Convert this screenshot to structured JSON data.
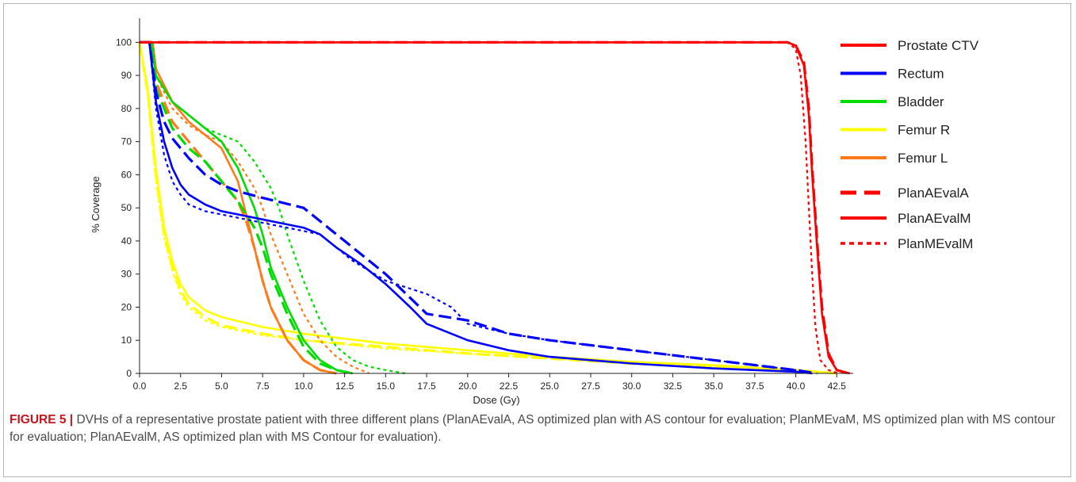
{
  "figure": {
    "caption_label": "FIGURE 5 |",
    "caption_text": " DVHs of a representative prostate patient with three different plans (PlanAEvalA, AS optimized plan with AS contour for evaluation; PlanMEvaM, MS optimized plan with MS contour for evaluation; PlanAEvalM, AS optimized plan with MS Contour for evaluation)."
  },
  "chart_data": {
    "type": "line",
    "xlabel": "Dose (Gy)",
    "ylabel": "% Coverage",
    "xlim": [
      0,
      43.5
    ],
    "ylim": [
      0,
      102
    ],
    "x_ticks": [
      "0.0",
      "2.5",
      "5.0",
      "7.5",
      "10.0",
      "12.5",
      "15.0",
      "17.5",
      "20.0",
      "22.5",
      "25.0",
      "27.5",
      "30.0",
      "32.5",
      "35.0",
      "37.5",
      "40.0",
      "42.5"
    ],
    "y_ticks": [
      "0",
      "10",
      "20",
      "30",
      "40",
      "50",
      "60",
      "70",
      "80",
      "90",
      "100"
    ],
    "grid": false,
    "legend_position": "right",
    "structure_legend": [
      {
        "name": "Prostate CTV",
        "color": "#ff0000"
      },
      {
        "name": "Rectum",
        "color": "#0000ff"
      },
      {
        "name": "Bladder",
        "color": "#00dd00"
      },
      {
        "name": "Femur R",
        "color": "#ffff00"
      },
      {
        "name": "Femur L",
        "color": "#ff7a1a"
      }
    ],
    "plan_legend": [
      {
        "name": "PlanAEvalA",
        "style": "dashed"
      },
      {
        "name": "PlanAEvalM",
        "style": "solid"
      },
      {
        "name": "PlanMEvalM",
        "style": "dotted"
      }
    ],
    "series": [
      {
        "structure": "Femur R",
        "plan": "PlanAEvalA",
        "color": "#ffff00",
        "x": [
          0,
          0.5,
          1,
          1.5,
          2,
          2.5,
          3,
          4,
          5,
          7.5,
          10,
          15,
          20,
          25,
          30,
          35,
          40,
          42.5
        ],
        "y": [
          100,
          85,
          60,
          42,
          32,
          25,
          21,
          17,
          14.5,
          12,
          10,
          8,
          6,
          4.5,
          3,
          2,
          1,
          0
        ]
      },
      {
        "structure": "Femur R",
        "plan": "PlanAEvalM",
        "color": "#ffff00",
        "x": [
          0,
          0.5,
          1,
          1.5,
          2,
          2.5,
          3,
          4,
          5,
          7.5,
          10,
          15,
          20,
          25,
          30,
          35,
          40,
          42.5
        ],
        "y": [
          100,
          86,
          62,
          44,
          34,
          27,
          23,
          19,
          17,
          14,
          12,
          9,
          7,
          5,
          3.5,
          2.5,
          1,
          0
        ]
      },
      {
        "structure": "Femur R",
        "plan": "PlanMEvalM",
        "color": "#ffff00",
        "x": [
          0,
          0.5,
          1,
          1.5,
          2,
          2.5,
          3,
          4,
          5,
          7.5,
          10,
          15,
          20,
          25,
          30,
          35,
          40,
          42.5
        ],
        "y": [
          100,
          84,
          58,
          41,
          31,
          24,
          20,
          16,
          14,
          11.5,
          10,
          7.5,
          6,
          4.5,
          3,
          2,
          1,
          0
        ]
      },
      {
        "structure": "Femur L",
        "plan": "PlanAEvalA",
        "color": "#ff7a1a",
        "x": [
          0,
          0.7,
          1,
          2,
          3,
          4,
          5,
          6,
          6.5,
          7,
          7.5,
          8,
          9,
          10,
          11,
          12
        ],
        "y": [
          100,
          100,
          88,
          76,
          70,
          64,
          58,
          52,
          46,
          38,
          28,
          20,
          10,
          4,
          1,
          0
        ]
      },
      {
        "structure": "Femur L",
        "plan": "PlanAEvalM",
        "color": "#ff7a1a",
        "x": [
          0,
          0.8,
          1,
          2,
          3,
          4,
          5,
          6,
          6.5,
          7,
          7.5,
          8,
          9,
          10,
          11,
          12
        ],
        "y": [
          100,
          100,
          92,
          82,
          76,
          72,
          68,
          58,
          48,
          38,
          28,
          20,
          10,
          4,
          1,
          0
        ]
      },
      {
        "structure": "Femur L",
        "plan": "PlanMEvalM",
        "color": "#ff7a1a",
        "x": [
          0,
          0.8,
          1,
          2,
          3,
          4,
          5,
          6,
          7,
          7.5,
          8,
          9,
          10,
          11,
          12,
          13,
          14
        ],
        "y": [
          100,
          100,
          90,
          80,
          75,
          72,
          70,
          64,
          56,
          50,
          42,
          30,
          18,
          10,
          5,
          2,
          0
        ]
      },
      {
        "structure": "Bladder",
        "plan": "PlanAEvalA",
        "color": "#00dd00",
        "x": [
          0,
          0.7,
          1,
          2,
          3,
          4,
          5,
          6,
          7,
          7.5,
          8,
          9,
          10,
          11,
          12,
          13
        ],
        "y": [
          100,
          100,
          86,
          74,
          68,
          64,
          58,
          52,
          44,
          38,
          30,
          18,
          8,
          3,
          1,
          0
        ]
      },
      {
        "structure": "Bladder",
        "plan": "PlanAEvalM",
        "color": "#00dd00",
        "x": [
          0,
          0.7,
          1,
          2,
          3,
          4,
          5,
          6,
          7,
          7.5,
          8,
          9,
          10,
          11,
          12,
          13
        ],
        "y": [
          100,
          100,
          90,
          82,
          78,
          74,
          70,
          62,
          50,
          42,
          32,
          20,
          10,
          4,
          1,
          0
        ]
      },
      {
        "structure": "Bladder",
        "plan": "PlanMEvalM",
        "color": "#00dd00",
        "x": [
          0,
          0.8,
          1,
          2,
          3,
          4,
          5,
          6,
          7,
          8,
          8.5,
          9,
          10,
          11,
          12,
          13,
          14,
          15,
          16.2
        ],
        "y": [
          100,
          100,
          90,
          82,
          78,
          74,
          72,
          70,
          64,
          56,
          50,
          42,
          28,
          16,
          8,
          4,
          2,
          1,
          0
        ]
      },
      {
        "structure": "Rectum",
        "plan": "PlanAEvalA",
        "color": "#0000ff",
        "x": [
          0,
          0.6,
          1,
          1.5,
          2,
          3,
          4,
          5,
          6,
          7.5,
          10,
          11.5,
          12.5,
          15,
          17.5,
          20,
          22.5,
          25,
          30,
          35,
          40,
          41.3
        ],
        "y": [
          100,
          100,
          85,
          76,
          71,
          65,
          60,
          57,
          55,
          53,
          50,
          44,
          40,
          30,
          18,
          16,
          12,
          10,
          7,
          4,
          1,
          0
        ]
      },
      {
        "structure": "Rectum",
        "plan": "PlanAEvalM",
        "color": "#0000ff",
        "x": [
          0,
          0.6,
          1,
          1.5,
          2,
          2.5,
          3,
          4,
          5,
          6,
          7,
          8,
          10,
          11,
          12,
          13.5,
          15,
          16.5,
          17.5,
          20,
          22.5,
          25,
          30,
          35,
          40,
          41
        ],
        "y": [
          100,
          100,
          82,
          70,
          62,
          57,
          54,
          51,
          49,
          48,
          47,
          46,
          44,
          42,
          38,
          33,
          27,
          20,
          15,
          10,
          7,
          5,
          3,
          1.5,
          0.5,
          0
        ]
      },
      {
        "structure": "Rectum",
        "plan": "PlanMEvalM",
        "color": "#0000ff",
        "x": [
          0,
          0.6,
          1,
          1.5,
          2,
          2.5,
          3,
          4,
          5,
          6,
          8,
          10,
          11,
          12,
          13,
          15,
          17.5,
          19,
          20,
          22.5,
          25,
          30,
          35,
          40,
          41
        ],
        "y": [
          100,
          100,
          80,
          66,
          58,
          54,
          51,
          49,
          48,
          47,
          45,
          43,
          42,
          38,
          34,
          28,
          24,
          20,
          15,
          12,
          10,
          7,
          4,
          1,
          0
        ]
      },
      {
        "structure": "Prostate CTV",
        "plan": "PlanAEvalA",
        "color": "#ff0000",
        "x": [
          0,
          39.5,
          40,
          40.5,
          40.8,
          41,
          41.3,
          41.6,
          42,
          42.5,
          43.2
        ],
        "y": [
          100,
          100,
          99,
          94,
          80,
          62,
          40,
          20,
          6,
          1,
          0
        ]
      },
      {
        "structure": "Prostate CTV",
        "plan": "PlanAEvalM",
        "color": "#ff0000",
        "x": [
          0,
          39.5,
          40,
          40.5,
          40.8,
          41,
          41.3,
          41.6,
          42,
          42.5,
          43.3
        ],
        "y": [
          100,
          100,
          99,
          93,
          78,
          60,
          38,
          18,
          5,
          1,
          0
        ]
      },
      {
        "structure": "Prostate CTV",
        "plan": "PlanMEvalM",
        "color": "#ff0000",
        "x": [
          0,
          39.5,
          40,
          40.3,
          40.6,
          40.8,
          41,
          41.2,
          41.5,
          42,
          42.6
        ],
        "y": [
          100,
          100,
          98,
          90,
          70,
          50,
          30,
          14,
          4,
          1,
          0
        ]
      }
    ]
  }
}
